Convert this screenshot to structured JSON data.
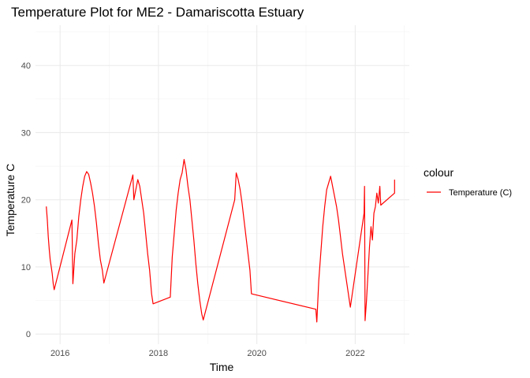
{
  "chart_data": {
    "type": "line",
    "title": "Temperature Plot for ME2 - Damariscotta Estuary",
    "xlabel": "Time",
    "ylabel": "Temperature C",
    "xlim": [
      2015.5,
      2023.1
    ],
    "ylim": [
      -1.5,
      46
    ],
    "x_ticks": [
      2016,
      2018,
      2020,
      2022
    ],
    "x_tick_labels": [
      "2016",
      "2018",
      "2020",
      "2022"
    ],
    "y_ticks": [
      0,
      10,
      20,
      30,
      40
    ],
    "y_tick_labels": [
      "0",
      "10",
      "20",
      "30",
      "40"
    ],
    "grid": true,
    "legend": {
      "title": "colour",
      "position": "right",
      "entries": [
        "Temperature (C)"
      ]
    },
    "series": [
      {
        "name": "Temperature (C)",
        "color": "#ff0000",
        "x": [
          2015.72,
          2015.74,
          2015.76,
          2015.78,
          2015.8,
          2015.82,
          2015.84,
          2015.86,
          2015.88,
          2016.24,
          2016.26,
          2016.3,
          2016.34,
          2016.38,
          2016.42,
          2016.46,
          2016.5,
          2016.54,
          2016.58,
          2016.62,
          2016.66,
          2016.7,
          2016.74,
          2016.78,
          2016.82,
          2016.86,
          2016.89,
          2017.48,
          2017.5,
          2017.54,
          2017.58,
          2017.62,
          2017.66,
          2017.7,
          2017.74,
          2017.78,
          2017.82,
          2017.86,
          2017.89,
          2018.24,
          2018.28,
          2018.32,
          2018.36,
          2018.4,
          2018.44,
          2018.48,
          2018.52,
          2018.56,
          2018.6,
          2018.64,
          2018.68,
          2018.72,
          2018.76,
          2018.8,
          2018.84,
          2018.88,
          2018.91,
          2019.55,
          2019.58,
          2019.62,
          2019.66,
          2019.7,
          2019.74,
          2019.78,
          2019.82,
          2019.86,
          2019.89,
          2021.2,
          2021.22,
          2021.26,
          2021.3,
          2021.34,
          2021.38,
          2021.42,
          2021.46,
          2021.5,
          2021.54,
          2021.58,
          2021.62,
          2021.66,
          2021.7,
          2021.74,
          2021.78,
          2021.82,
          2021.86,
          2021.9,
          2022.18,
          2022.19,
          2022.2,
          2022.23,
          2022.26,
          2022.29,
          2022.32,
          2022.35,
          2022.38,
          2022.41,
          2022.44,
          2022.47,
          2022.5,
          2022.52,
          2022.8,
          2022.8
        ],
        "y": [
          19.0,
          17.0,
          14.5,
          12.5,
          11.0,
          10.0,
          9.0,
          7.5,
          6.6,
          17.0,
          7.5,
          12.0,
          14.0,
          17.5,
          20.0,
          22.0,
          23.5,
          24.2,
          23.8,
          22.5,
          21.0,
          19.0,
          16.5,
          13.5,
          11.0,
          9.5,
          7.6,
          23.7,
          20.0,
          21.5,
          23.0,
          22.0,
          20.0,
          18.0,
          15.0,
          12.0,
          9.5,
          6.0,
          4.5,
          5.5,
          11.5,
          15.0,
          18.5,
          21.0,
          23.0,
          24.0,
          26.0,
          24.5,
          22.0,
          20.0,
          17.0,
          14.0,
          10.5,
          7.5,
          5.0,
          3.0,
          2.1,
          20.0,
          24.0,
          23.0,
          21.5,
          19.5,
          17.0,
          14.5,
          12.0,
          9.5,
          6.0,
          3.7,
          1.8,
          8.0,
          12.0,
          16.0,
          19.0,
          21.5,
          22.5,
          23.5,
          22.0,
          20.5,
          19.0,
          17.0,
          14.5,
          12.0,
          10.0,
          8.0,
          6.0,
          4.0,
          18.0,
          22.0,
          2.0,
          5.0,
          9.0,
          13.0,
          16.0,
          14.0,
          18.0,
          19.0,
          21.0,
          19.5,
          22.0,
          19.2,
          21.0,
          23.0
        ]
      }
    ]
  }
}
